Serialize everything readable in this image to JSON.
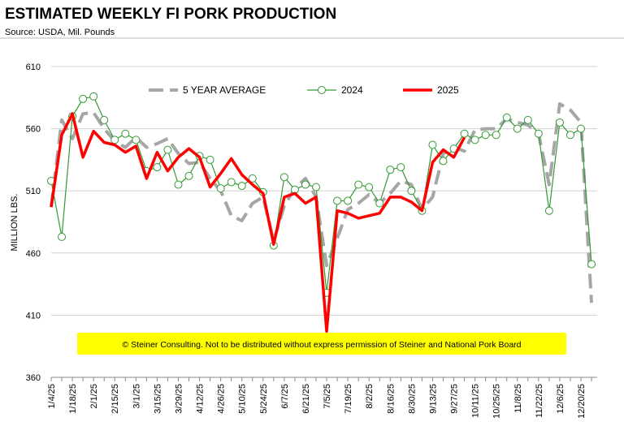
{
  "chart_data": {
    "type": "line",
    "title": "ESTIMATED WEEKLY FI PORK PRODUCTION",
    "subtitle": "Source: USDA, Mil. Pounds",
    "y_label": "MILLION LBS.",
    "notice": "© Steiner Consulting.  Not to be distributed without express permission of Steiner and National Pork Board",
    "categories": [
      "1/4/25",
      null,
      "1/18/25",
      null,
      "2/1/25",
      null,
      "2/15/25",
      null,
      "3/1/25",
      null,
      "3/15/25",
      null,
      "3/29/25",
      null,
      "4/12/25",
      null,
      "4/26/25",
      null,
      "5/10/25",
      null,
      "5/24/25",
      null,
      "6/7/25",
      null,
      "6/21/25",
      null,
      "7/5/25",
      null,
      "7/19/25",
      null,
      "8/2/25",
      null,
      "8/16/25",
      null,
      "8/30/25",
      null,
      "9/13/25",
      null,
      "9/27/25",
      null,
      "10/11/25",
      null,
      "10/25/25",
      null,
      "11/8/25",
      null,
      "11/22/25",
      null,
      "12/6/25",
      null,
      "12/20/25",
      null
    ],
    "series": [
      {
        "name": "5 YEAR AVERAGE",
        "color": "#a6a6a6",
        "dashed": true,
        "values": [
          497,
          567,
          552,
          572,
          573,
          560,
          550,
          545,
          553,
          545,
          548,
          552,
          540,
          532,
          533,
          520,
          510,
          490,
          486,
          500,
          505,
          470,
          498,
          512,
          520,
          505,
          450,
          472,
          495,
          500,
          507,
          500,
          508,
          518,
          515,
          495,
          505,
          540,
          545,
          542,
          559,
          560,
          560,
          568,
          565,
          563,
          556,
          515,
          580,
          575,
          565,
          420
        ]
      },
      {
        "name": "2024",
        "color": "#339933",
        "markers": true,
        "values": [
          518,
          473,
          570,
          584,
          586,
          567,
          551,
          556,
          551,
          526,
          529,
          543,
          515,
          522,
          538,
          535,
          512,
          517,
          514,
          520,
          509,
          466,
          521,
          511,
          515,
          513,
          428,
          502,
          502,
          515,
          513,
          500,
          527,
          529,
          510,
          494,
          547,
          534,
          544,
          556,
          551,
          555,
          555,
          569,
          560,
          567,
          556,
          494,
          565,
          555,
          560,
          451
        ]
      },
      {
        "name": "2025",
        "color": "#ff0000",
        "values": [
          497,
          555,
          572,
          537,
          558,
          549,
          547,
          541,
          546,
          520,
          541,
          526,
          537,
          544,
          537,
          513,
          524,
          536,
          523,
          515,
          508,
          467,
          505,
          508,
          500,
          505,
          397,
          494,
          492,
          488,
          490,
          492,
          505,
          505,
          501,
          494,
          533,
          543,
          537,
          553,
          null,
          null,
          null,
          null,
          null,
          null,
          null,
          null,
          null,
          null,
          null,
          null
        ]
      }
    ],
    "ylim": [
      360,
      610
    ],
    "yticks": [
      360,
      410,
      460,
      510,
      560,
      610
    ],
    "grid": true
  }
}
